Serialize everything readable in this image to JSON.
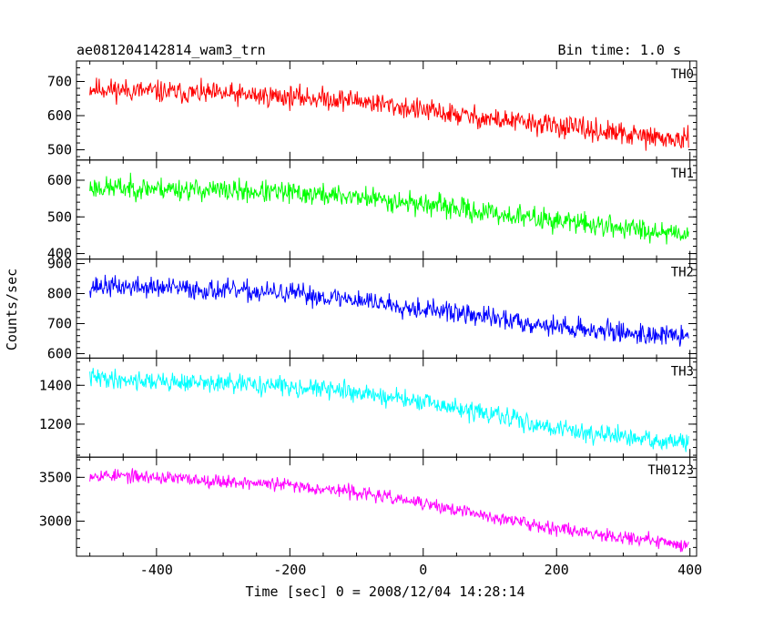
{
  "chart_data": {
    "type": "line",
    "title": "ae081204142814_wam3_trn",
    "subtitle": "Bin time: 1.0 s",
    "xlabel": "Time [sec] 0 = 2008/12/04 14:28:14",
    "ylabel": "Counts/sec",
    "xlim": [
      -520,
      410
    ],
    "x_ticks": [
      "-400",
      "-200",
      "0",
      "200",
      "400"
    ],
    "x_tick_values": [
      -400,
      -200,
      0,
      200,
      400
    ],
    "grid": false,
    "panels": [
      {
        "name": "TH0",
        "color": "#ff0000",
        "ylim": [
          470,
          760
        ],
        "y_ticks": [
          "500",
          "600",
          "700"
        ],
        "y_tick_values": [
          500,
          600,
          700
        ],
        "trend": {
          "x": [
            -500,
            -400,
            -200,
            -100,
            0,
            100,
            200,
            300,
            400
          ],
          "y": [
            680,
            670,
            655,
            645,
            615,
            590,
            570,
            545,
            525
          ]
        },
        "noise": 30,
        "seed": 11
      },
      {
        "name": "TH1",
        "color": "#00ff00",
        "ylim": [
          385,
          655
        ],
        "y_ticks": [
          "400",
          "500",
          "600"
        ],
        "y_tick_values": [
          400,
          500,
          600
        ],
        "trend": {
          "x": [
            -500,
            -400,
            -200,
            -100,
            0,
            100,
            200,
            300,
            400
          ],
          "y": [
            580,
            578,
            565,
            555,
            535,
            510,
            490,
            470,
            455
          ]
        },
        "noise": 28,
        "seed": 23
      },
      {
        "name": "TH2",
        "color": "#0000ff",
        "ylim": [
          585,
          915
        ],
        "y_ticks": [
          "600",
          "700",
          "800",
          "900"
        ],
        "y_tick_values": [
          600,
          700,
          800,
          900
        ],
        "trend": {
          "x": [
            -500,
            -400,
            -200,
            -100,
            0,
            100,
            200,
            300,
            400
          ],
          "y": [
            825,
            820,
            800,
            780,
            750,
            720,
            690,
            670,
            655
          ]
        },
        "noise": 32,
        "seed": 37
      },
      {
        "name": "TH3",
        "color": "#00ffff",
        "ylim": [
          1030,
          1540
        ],
        "y_ticks": [
          "1200",
          "1400"
        ],
        "y_tick_values": [
          1200,
          1400
        ],
        "trend": {
          "x": [
            -500,
            -400,
            -200,
            -100,
            0,
            100,
            200,
            300,
            400
          ],
          "y": [
            1440,
            1420,
            1395,
            1365,
            1310,
            1250,
            1180,
            1130,
            1100
          ]
        },
        "noise": 45,
        "seed": 41
      },
      {
        "name": "TH0123",
        "color": "#ff00ff",
        "ylim": [
          2600,
          3730
        ],
        "y_ticks": [
          "3000",
          "3500"
        ],
        "y_tick_values": [
          3000,
          3500
        ],
        "trend": {
          "x": [
            -500,
            -400,
            -200,
            -100,
            0,
            100,
            200,
            300,
            400
          ],
          "y": [
            3530,
            3500,
            3410,
            3330,
            3200,
            3050,
            2920,
            2820,
            2720
          ]
        },
        "noise": 70,
        "seed": 53
      }
    ]
  }
}
